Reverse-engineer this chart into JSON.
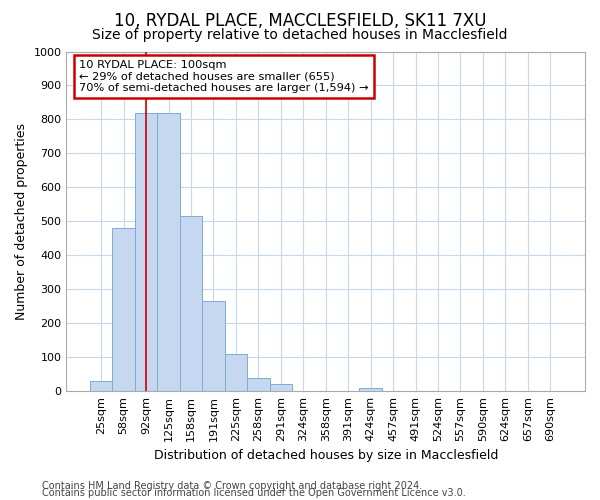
{
  "title1": "10, RYDAL PLACE, MACCLESFIELD, SK11 7XU",
  "title2": "Size of property relative to detached houses in Macclesfield",
  "xlabel": "Distribution of detached houses by size in Macclesfield",
  "ylabel": "Number of detached properties",
  "footer1": "Contains HM Land Registry data © Crown copyright and database right 2024.",
  "footer2": "Contains public sector information licensed under the Open Government Licence v3.0.",
  "annotation_line1": "10 RYDAL PLACE: 100sqm",
  "annotation_line2": "← 29% of detached houses are smaller (655)",
  "annotation_line3": "70% of semi-detached houses are larger (1,594) →",
  "bar_labels": [
    "25sqm",
    "58sqm",
    "92sqm",
    "125sqm",
    "158sqm",
    "191sqm",
    "225sqm",
    "258sqm",
    "291sqm",
    "324sqm",
    "358sqm",
    "391sqm",
    "424sqm",
    "457sqm",
    "491sqm",
    "524sqm",
    "557sqm",
    "590sqm",
    "624sqm",
    "657sqm",
    "690sqm"
  ],
  "bar_values": [
    30,
    480,
    820,
    820,
    515,
    265,
    108,
    38,
    20,
    0,
    0,
    0,
    8,
    0,
    0,
    0,
    0,
    0,
    0,
    0,
    0
  ],
  "bar_color": "#c5d8f0",
  "bar_edgecolor": "#7aadd4",
  "red_line_x": 2.0,
  "ylim": [
    0,
    1000
  ],
  "yticks": [
    0,
    100,
    200,
    300,
    400,
    500,
    600,
    700,
    800,
    900,
    1000
  ],
  "bg_color": "#ffffff",
  "grid_color": "#c8d8eb",
  "annotation_box_color": "#cc0000",
  "title_fontsize": 12,
  "subtitle_fontsize": 10,
  "axis_label_fontsize": 9,
  "tick_fontsize": 8,
  "footer_fontsize": 7
}
